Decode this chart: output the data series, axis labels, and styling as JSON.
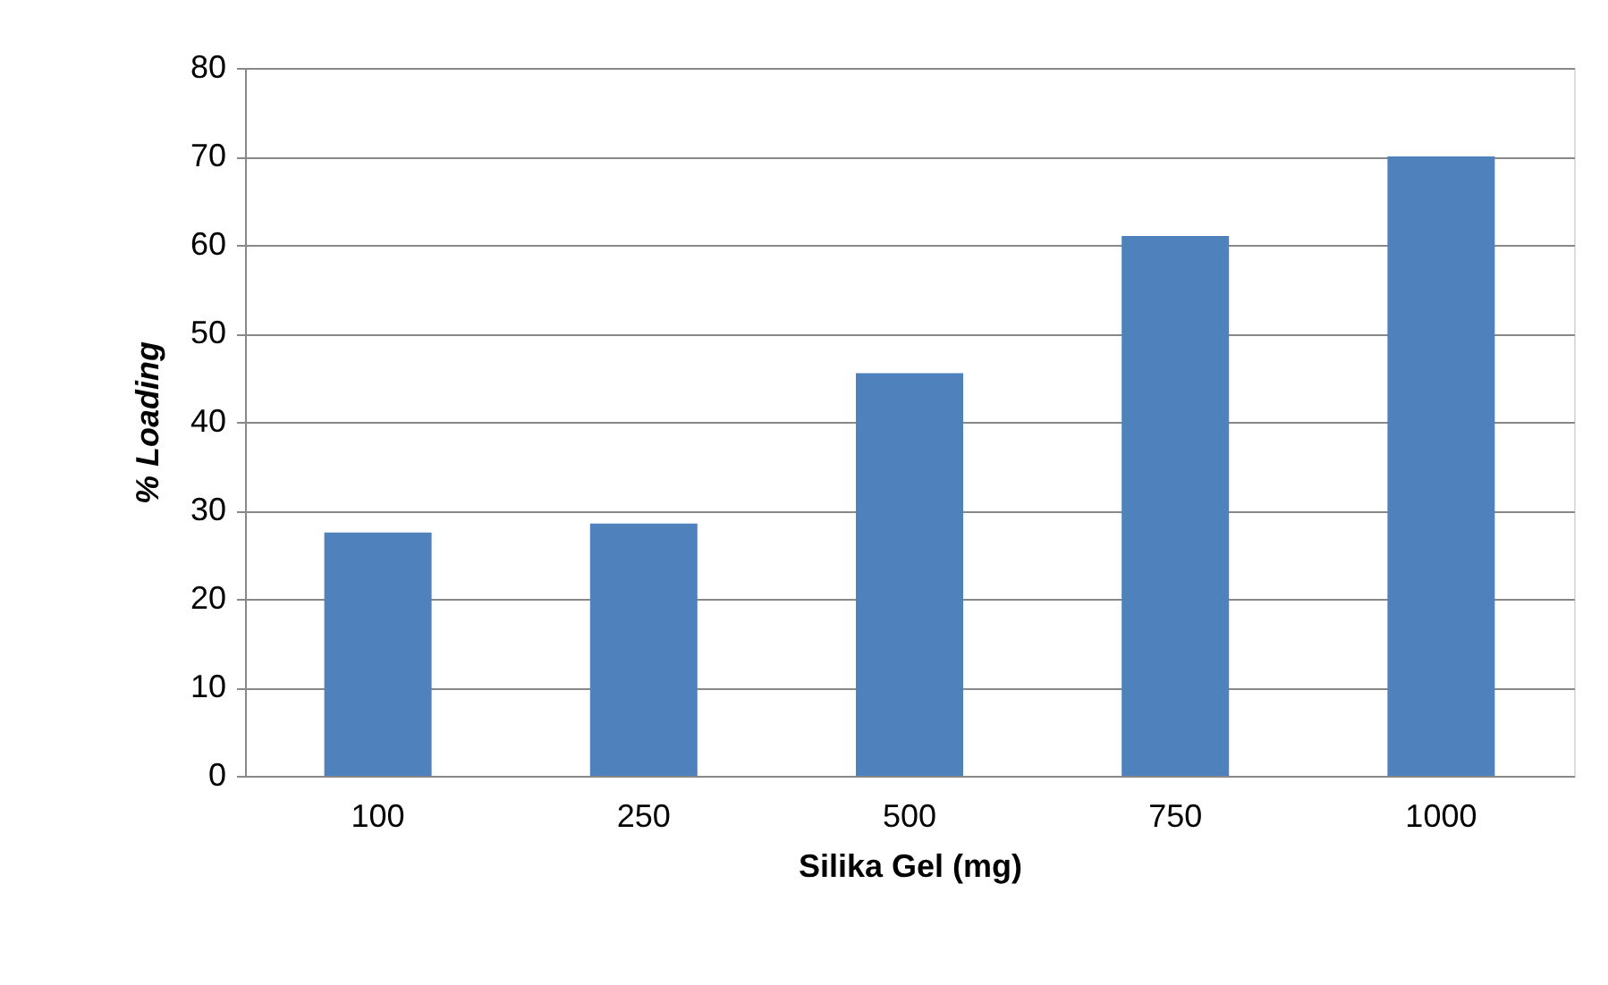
{
  "chart_data": {
    "type": "bar",
    "xlabel": "Silika Gel (mg)",
    "ylabel": "% Loading",
    "categories": [
      "100",
      "250",
      "500",
      "750",
      "1000"
    ],
    "values": [
      27.5,
      28.5,
      45.5,
      61,
      70
    ],
    "color": "#4f81bd",
    "ylim": [
      0,
      80
    ],
    "yticks": [
      0,
      10,
      20,
      30,
      40,
      50,
      60,
      70,
      80
    ],
    "grid": "y"
  }
}
